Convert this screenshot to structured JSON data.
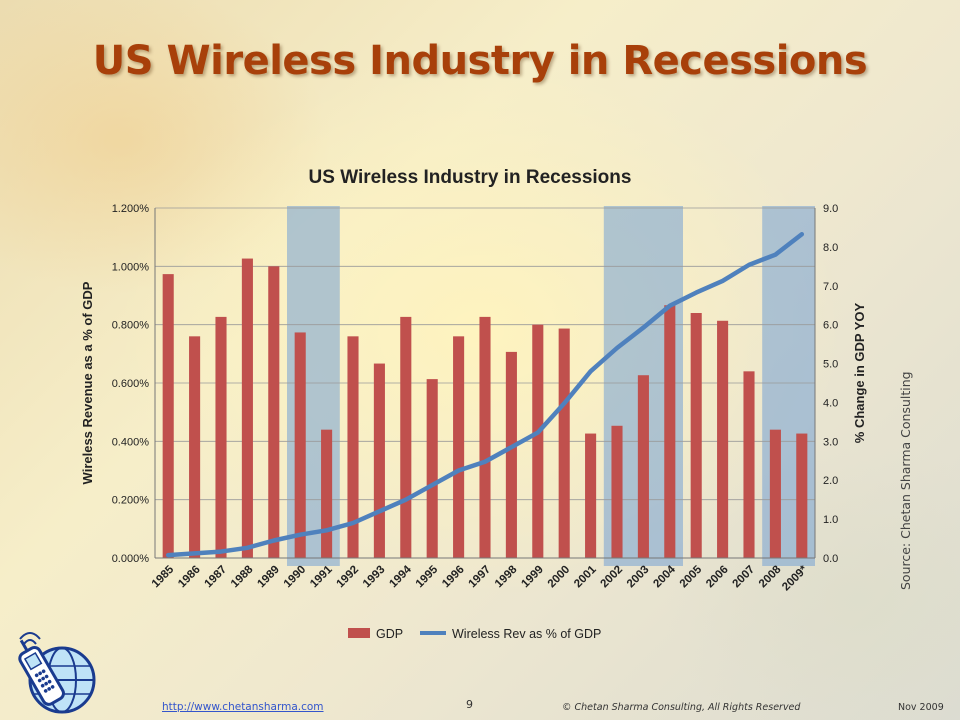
{
  "slide": {
    "title": "US Wireless Industry in Recessions",
    "source": "Source: Chetan Sharma Consulting",
    "footer_link": "http://www.chetansharma.com",
    "page_number": "9",
    "copyright": "© Chetan Sharma Consulting, All Rights Reserved",
    "date": "Nov 2009"
  },
  "colors": {
    "bar": "#c0504d",
    "line": "#4f81bd",
    "recession_band": "#7fa7d3",
    "title": "#a8400a"
  },
  "icons": {
    "logo": "satellite-phone-globe-icon"
  },
  "chart_data": {
    "type": "bar",
    "title": "US Wireless Industry in Recessions",
    "categories": [
      "1985",
      "1986",
      "1987",
      "1988",
      "1989",
      "1990",
      "1991",
      "1992",
      "1993",
      "1994",
      "1995",
      "1996",
      "1997",
      "1998",
      "1999",
      "2000",
      "2001",
      "2002",
      "2003",
      "2004",
      "2005",
      "2006",
      "2007",
      "2008",
      "2009*"
    ],
    "ylabel_left": "Wireless Revenue as a % of GDP",
    "ylabel_right": "% Change in GDP YOY",
    "ylim_left": [
      0,
      1.2
    ],
    "ylim_right": [
      0,
      9
    ],
    "yticks_left": [
      "0.000%",
      "0.200%",
      "0.400%",
      "0.600%",
      "0.800%",
      "1.000%",
      "1.200%"
    ],
    "yticks_right": [
      "0.0",
      "1.0",
      "2.0",
      "3.0",
      "4.0",
      "5.0",
      "6.0",
      "7.0",
      "8.0",
      "9.0"
    ],
    "grid": true,
    "legend_position": "bottom",
    "recession_periods": [
      [
        "1990",
        "1991"
      ],
      [
        "2002",
        "2004"
      ],
      [
        "2008",
        "2009*"
      ]
    ],
    "series": [
      {
        "name": "GDP",
        "type": "bar",
        "axis": "right",
        "values": [
          7.3,
          5.7,
          6.2,
          7.7,
          7.5,
          5.8,
          3.3,
          5.7,
          5.0,
          6.2,
          4.6,
          5.7,
          6.2,
          5.3,
          6.0,
          5.9,
          3.2,
          3.4,
          4.7,
          6.5,
          6.3,
          6.1,
          4.8,
          3.3,
          3.2
        ]
      },
      {
        "name": "Wireless Rev as % of GDP",
        "type": "line",
        "axis": "left",
        "values": [
          0.01,
          0.016,
          0.022,
          0.035,
          0.06,
          0.08,
          0.095,
          0.12,
          0.16,
          0.2,
          0.25,
          0.3,
          0.33,
          0.38,
          0.43,
          0.53,
          0.64,
          0.72,
          0.79,
          0.865,
          0.91,
          0.95,
          1.005,
          1.04,
          1.11
        ]
      }
    ]
  }
}
